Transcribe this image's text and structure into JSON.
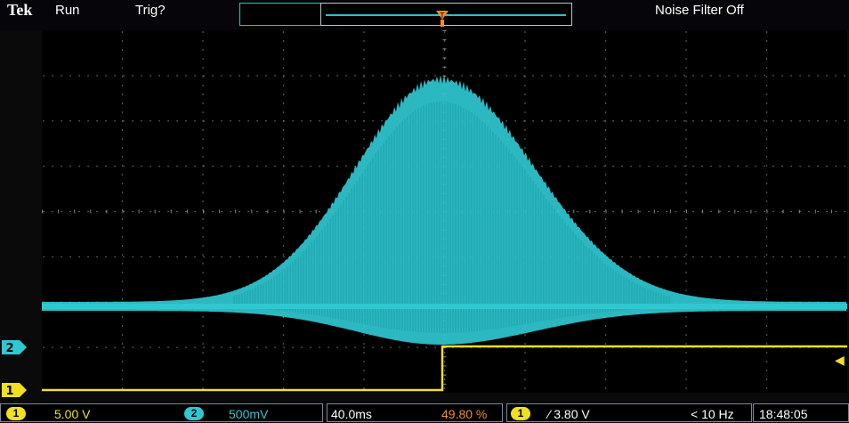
{
  "header": {
    "brand": "Tek",
    "run_status": "Run",
    "trigger_status": "Trig?",
    "noise_filter": "Noise Filter Off"
  },
  "channels": {
    "ch1": {
      "label": "1",
      "scale": "5.00 V",
      "color": "#f0e020"
    },
    "ch2": {
      "label": "2",
      "scale": "500mV",
      "color": "#30c8d0"
    }
  },
  "timebase": {
    "scale": "40.0ms",
    "position": "49.80 %"
  },
  "trigger": {
    "source": "1",
    "slope_level": "⁄ 3.80 V",
    "frequency": "< 10 Hz",
    "position_marker": "T"
  },
  "clock": "18:48:05",
  "icons": {
    "trigger_position": "triangle-down-icon",
    "trigger_level": "arrow-left-icon",
    "ch1_ground": "ch1-ground-marker-icon",
    "ch2_ground": "ch2-ground-marker-icon"
  }
}
